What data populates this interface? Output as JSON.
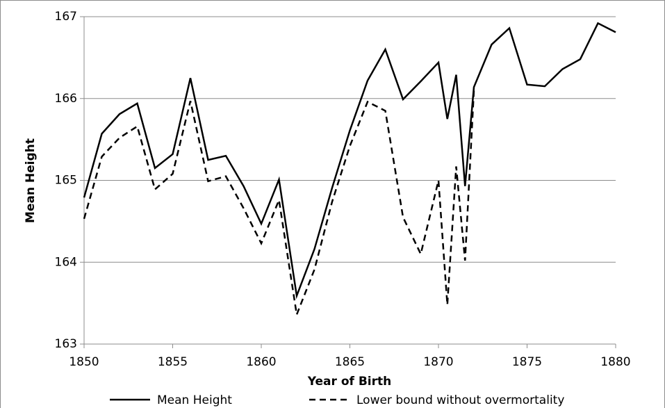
{
  "chart_data": {
    "type": "line",
    "x_label": "Year of Birth",
    "y_label": "Mean Height",
    "x": [
      1850,
      1851,
      1852,
      1853,
      1854,
      1855,
      1856,
      1857,
      1858,
      1859,
      1860,
      1861,
      1862,
      1863,
      1864,
      1865,
      1866,
      1867,
      1868,
      1869,
      1870,
      1870.5,
      1871,
      1871.5,
      1872,
      1873,
      1874,
      1875,
      1876,
      1877,
      1878,
      1879,
      1880
    ],
    "series": [
      {
        "name": "Mean Height",
        "color": "#000000",
        "dash": false,
        "values": [
          164.79,
          165.57,
          165.81,
          165.94,
          165.15,
          165.32,
          166.25,
          165.25,
          165.3,
          164.93,
          164.47,
          165.01,
          163.59,
          164.16,
          164.91,
          165.61,
          166.22,
          166.6,
          165.99,
          166.21,
          166.44,
          165.75,
          166.29,
          164.93,
          166.14,
          166.66,
          166.86,
          166.17,
          166.15,
          166.36,
          166.48,
          166.92,
          166.81
        ]
      },
      {
        "name": "Lower bound without overmortality",
        "color": "#000000",
        "dash": true,
        "values": [
          164.53,
          165.29,
          165.52,
          165.66,
          164.89,
          165.08,
          165.97,
          164.99,
          165.05,
          164.66,
          164.23,
          164.76,
          163.36,
          163.91,
          164.74,
          165.42,
          165.96,
          165.85,
          164.55,
          164.1,
          165.0,
          163.48,
          165.17,
          164.02,
          166.1,
          null,
          null,
          null,
          null,
          null,
          null,
          null,
          null
        ]
      }
    ],
    "xlim": [
      1850,
      1880
    ],
    "xticks": [
      1850,
      1855,
      1860,
      1865,
      1870,
      1875,
      1880
    ],
    "ylim": [
      163,
      167
    ],
    "yticks": [
      163,
      164,
      165,
      166,
      167
    ],
    "grid": true,
    "legend": "bottom"
  }
}
